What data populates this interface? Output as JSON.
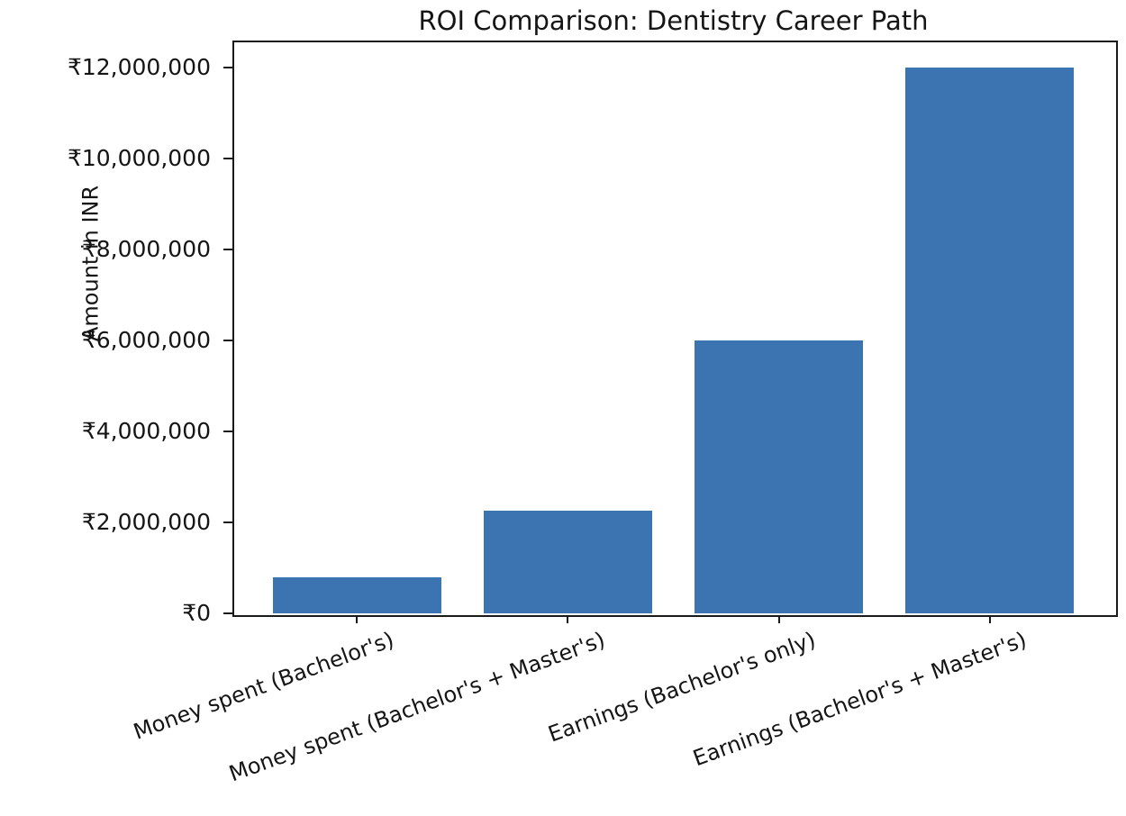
{
  "chart_data": {
    "type": "bar",
    "title": "ROI Comparison: Dentistry Career Path",
    "xlabel": "",
    "ylabel": "Amount in INR",
    "categories": [
      "Money spent (Bachelor's)",
      "Money spent (Bachelor's + Master's)",
      "Earnings (Bachelor's only)",
      "Earnings (Bachelor's + Master's)"
    ],
    "values": [
      800000,
      2250000,
      6000000,
      12000000
    ],
    "currency": "INR",
    "currency_symbol": "₹",
    "yticks": [
      0,
      2000000,
      4000000,
      6000000,
      8000000,
      10000000,
      12000000
    ],
    "ytick_labels": [
      "₹0",
      "₹2,000,000",
      "₹4,000,000",
      "₹6,000,000",
      "₹8,000,000",
      "₹10,000,000",
      "₹12,000,000"
    ],
    "ylim": [
      0,
      12600000
    ],
    "bar_color": "#3b74b0",
    "grid": false,
    "legend_position": "none",
    "xtick_rotation_deg": 20
  }
}
